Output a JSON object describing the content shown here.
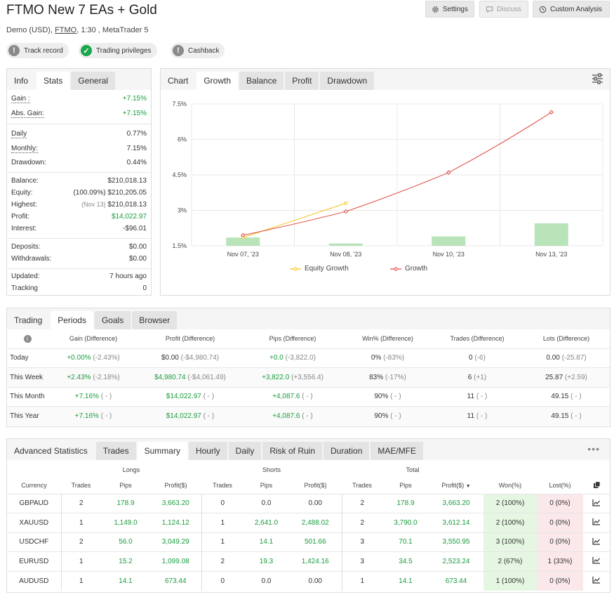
{
  "header": {
    "title": "FTMO New 7 EAs + Gold",
    "subtitle_prefix": "Demo (USD), ",
    "subtitle_broker": "FTMO",
    "subtitle_suffix": ", 1:30 , MetaTrader 5",
    "buttons": {
      "settings": "Settings",
      "discuss": "Discuss",
      "custom_analysis": "Custom Analysis"
    },
    "badges": [
      {
        "label": "Track record",
        "status": "grey"
      },
      {
        "label": "Trading privileges",
        "status": "green"
      },
      {
        "label": "Cashback",
        "status": "grey"
      }
    ]
  },
  "info_panel": {
    "tabs": [
      "Info",
      "Stats",
      "General"
    ],
    "rows": {
      "gain": {
        "label": "Gain :",
        "value": "+7.15%"
      },
      "abs_gain": {
        "label": "Abs. Gain:",
        "value": "+7.15%"
      },
      "daily": {
        "label": "Daily",
        "value": "0.77%"
      },
      "monthly": {
        "label": "Monthly:",
        "value": "7.15%"
      },
      "drawdown": {
        "label": "Drawdown:",
        "value": "0.44%"
      },
      "balance": {
        "label": "Balance:",
        "value": "$210,018.13"
      },
      "equity": {
        "label": "Equity:",
        "note": "(100.09%)",
        "value": "$210,205.05"
      },
      "highest": {
        "label": "Highest:",
        "note": "(Nov 13)",
        "value": "$210,018.13"
      },
      "profit": {
        "label": "Profit:",
        "value": "$14,022.97"
      },
      "interest": {
        "label": "Interest:",
        "value": "-$96.01"
      },
      "deposits": {
        "label": "Deposits:",
        "value": "$0.00"
      },
      "withdrawals": {
        "label": "Withdrawals:",
        "value": "$0.00"
      },
      "updated": {
        "label": "Updated:",
        "value": "7 hours ago"
      },
      "tracking": {
        "label": "Tracking",
        "value": "0"
      }
    }
  },
  "chart_panel": {
    "tabs": [
      "Chart",
      "Growth",
      "Balance",
      "Profit",
      "Drawdown"
    ],
    "filter_icon": "sliders-icon"
  },
  "chart_data": {
    "type": "line",
    "categories": [
      "Nov 07, '23",
      "Nov 08, '23",
      "Nov 10, '23",
      "Nov 13, '23"
    ],
    "y_ticks": [
      "7.5%",
      "6%",
      "4.5%",
      "3%",
      "1.5%"
    ],
    "ylim": [
      1.5,
      7.5
    ],
    "series": [
      {
        "name": "Equity Growth",
        "type": "line",
        "color": "#f0c419",
        "values": [
          1.85,
          3.3,
          null,
          null
        ]
      },
      {
        "name": "Growth",
        "type": "line",
        "color": "#e0483e",
        "values": [
          1.95,
          2.95,
          4.6,
          7.15
        ]
      },
      {
        "type": "bar",
        "color": "#b9e3b9",
        "values": [
          1.85,
          1.6,
          1.9,
          2.45
        ]
      }
    ],
    "legend": [
      "Equity Growth",
      "Growth"
    ],
    "grid": true
  },
  "periods_panel": {
    "tabs": [
      "Trading",
      "Periods",
      "Goals",
      "Browser"
    ],
    "columns": [
      "Gain (Difference)",
      "Profit (Difference)",
      "Pips (Difference)",
      "Win% (Difference)",
      "Trades (Difference)",
      "Lots (Difference)"
    ],
    "rows": [
      {
        "period": "Today",
        "gain": "+0.00%",
        "gain_diff": "(-2.43%)",
        "profit": "$0.00",
        "profit_diff": "(-$4,980.74)",
        "pips": "+0.0",
        "pips_diff": "(-3,822.0)",
        "win": "0%",
        "win_diff": "(-83%)",
        "trades": "0",
        "trades_diff": "(-6)",
        "lots": "0.00",
        "lots_diff": "(-25.87)"
      },
      {
        "period": "This Week",
        "gain": "+2.43%",
        "gain_diff": "(-2.18%)",
        "profit": "$4,980.74",
        "profit_diff": "(-$4,061.49)",
        "pips": "+3,822.0",
        "pips_diff": "(+3,556.4)",
        "win": "83%",
        "win_diff": "(-17%)",
        "trades": "6",
        "trades_diff": "(+1)",
        "lots": "25.87",
        "lots_diff": "(+2.59)"
      },
      {
        "period": "This Month",
        "gain": "+7.16%",
        "gain_diff": "( - )",
        "profit": "$14,022.97",
        "profit_diff": "( - )",
        "pips": "+4,087.6",
        "pips_diff": "( - )",
        "win": "90%",
        "win_diff": "( - )",
        "trades": "11",
        "trades_diff": "( - )",
        "lots": "49.15",
        "lots_diff": "( - )"
      },
      {
        "period": "This Year",
        "gain": "+7.16%",
        "gain_diff": "( - )",
        "profit": "$14,022.97",
        "profit_diff": "( - )",
        "pips": "+4,087.6",
        "pips_diff": "( - )",
        "win": "90%",
        "win_diff": "( - )",
        "trades": "11",
        "trades_diff": "( - )",
        "lots": "49.15",
        "lots_diff": "( - )"
      }
    ]
  },
  "advanced_panel": {
    "tabs": [
      "Advanced Statistics",
      "Trades",
      "Summary",
      "Hourly",
      "Daily",
      "Risk of Ruin",
      "Duration",
      "MAE/MFE"
    ],
    "groups": [
      "Longs",
      "Shorts",
      "Total"
    ],
    "columns": [
      "Currency",
      "Trades",
      "Pips",
      "Profit($)",
      "Trades",
      "Pips",
      "Profit($)",
      "Trades",
      "Pips",
      "Profit($)",
      "Won(%)",
      "Lost(%)"
    ],
    "rows": [
      {
        "currency": "GBPAUD",
        "l_trades": "2",
        "l_pips": "178.9",
        "l_profit": "3,663.20",
        "s_trades": "0",
        "s_pips": "0.0",
        "s_profit": "0.00",
        "t_trades": "2",
        "t_pips": "178.9",
        "t_profit": "3,663.20",
        "won": "2 (100%)",
        "lost": "0 (0%)"
      },
      {
        "currency": "XAUUSD",
        "l_trades": "1",
        "l_pips": "1,149.0",
        "l_profit": "1,124.12",
        "s_trades": "1",
        "s_pips": "2,641.0",
        "s_profit": "2,488.02",
        "t_trades": "2",
        "t_pips": "3,790.0",
        "t_profit": "3,612.14",
        "won": "2 (100%)",
        "lost": "0 (0%)"
      },
      {
        "currency": "USDCHF",
        "l_trades": "2",
        "l_pips": "56.0",
        "l_profit": "3,049.29",
        "s_trades": "1",
        "s_pips": "14.1",
        "s_profit": "501.66",
        "t_trades": "3",
        "t_pips": "70.1",
        "t_profit": "3,550.95",
        "won": "3 (100%)",
        "lost": "0 (0%)"
      },
      {
        "currency": "EURUSD",
        "l_trades": "1",
        "l_pips": "15.2",
        "l_profit": "1,099.08",
        "s_trades": "2",
        "s_pips": "19.3",
        "s_profit": "1,424.16",
        "t_trades": "3",
        "t_pips": "34.5",
        "t_profit": "2,523.24",
        "won": "2 (67%)",
        "lost": "1 (33%)"
      },
      {
        "currency": "AUDUSD",
        "l_trades": "1",
        "l_pips": "14.1",
        "l_profit": "673.44",
        "s_trades": "0",
        "s_pips": "0.0",
        "s_profit": "0.00",
        "t_trades": "1",
        "t_pips": "14.1",
        "t_profit": "673.44",
        "won": "1 (100%)",
        "lost": "0 (0%)"
      }
    ]
  }
}
